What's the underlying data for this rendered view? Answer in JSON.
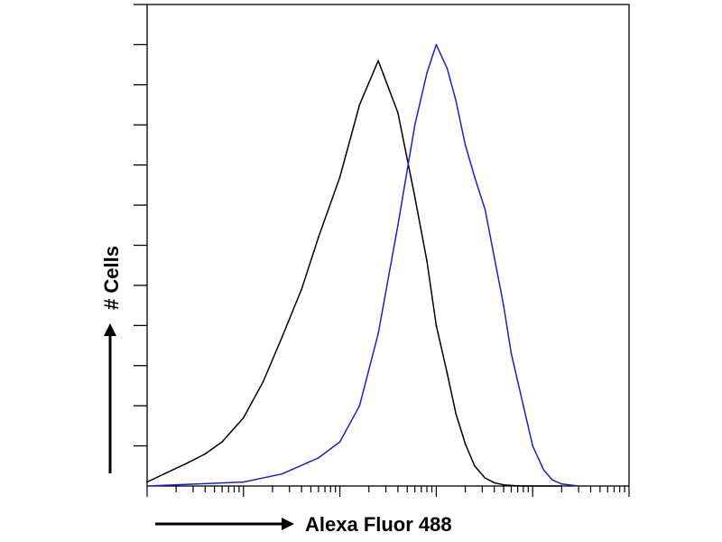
{
  "chart_data": {
    "type": "line",
    "title": "",
    "xlabel": "Alexa Fluor 488",
    "ylabel": "# Cells",
    "x_scale": "log",
    "grid": false,
    "legend": "none",
    "xlim": [
      1,
      100000
    ],
    "ylim": [
      0,
      12
    ],
    "series": [
      {
        "color": "#000000",
        "x": [
          1.0,
          1.5,
          2.5,
          4,
          6,
          10,
          16,
          25,
          40,
          60,
          100,
          160,
          250,
          400,
          600,
          800,
          1000,
          1300,
          1600,
          2000,
          2500,
          3200,
          4000,
          5000,
          6500,
          8000,
          10000,
          20000
        ],
        "y": [
          0.1,
          0.3,
          0.55,
          0.8,
          1.1,
          1.7,
          2.6,
          3.7,
          4.9,
          6.2,
          7.7,
          9.5,
          10.6,
          9.3,
          7.2,
          5.6,
          4.0,
          2.8,
          1.8,
          1.05,
          0.5,
          0.2,
          0.08,
          0.03,
          0.01,
          0,
          0,
          0
        ]
      },
      {
        "color": "#1f1fc8",
        "x": [
          1.0,
          10,
          25,
          60,
          100,
          160,
          250,
          400,
          600,
          800,
          1000,
          1300,
          1600,
          2000,
          2500,
          3200,
          4000,
          5000,
          6000,
          8000,
          10000,
          13000,
          16000,
          20000,
          30000
        ],
        "y": [
          0,
          0.1,
          0.3,
          0.7,
          1.1,
          2.0,
          3.8,
          6.5,
          9.0,
          10.3,
          11.0,
          10.4,
          9.6,
          8.5,
          7.7,
          6.9,
          5.7,
          4.5,
          3.3,
          2.0,
          1.0,
          0.4,
          0.15,
          0.05,
          0
        ]
      }
    ]
  }
}
